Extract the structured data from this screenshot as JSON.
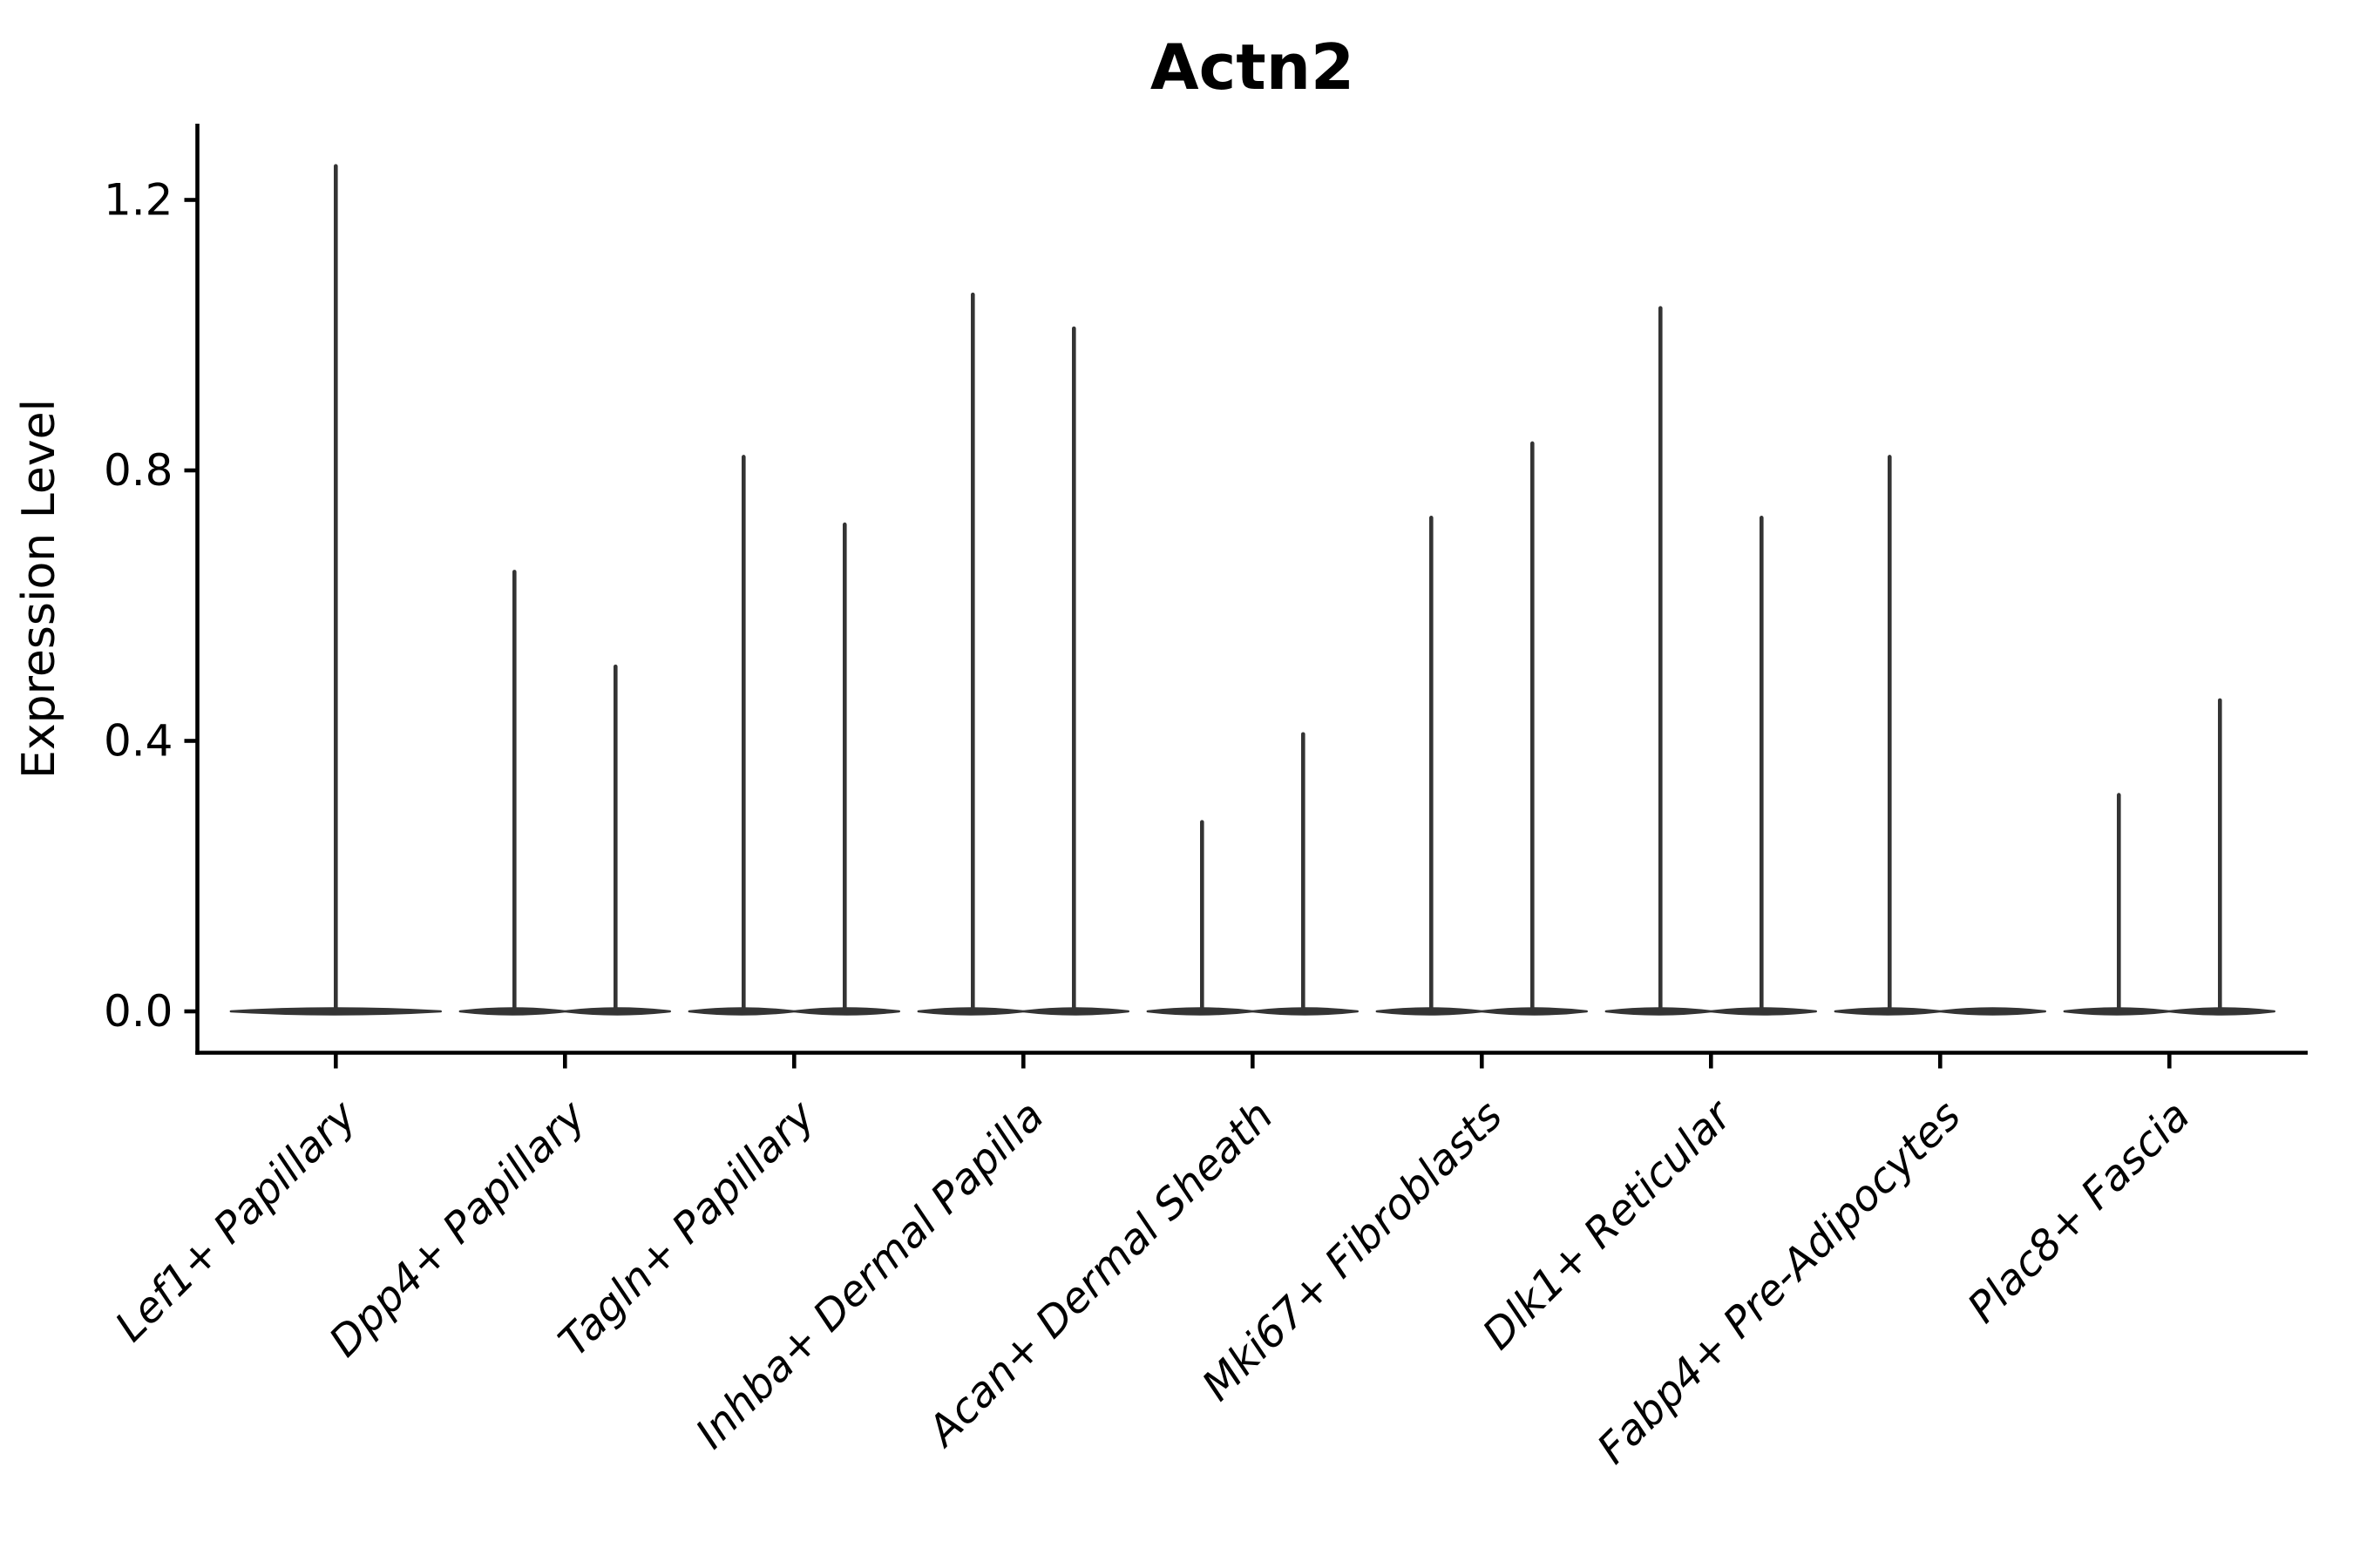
{
  "chart_data": {
    "type": "violin",
    "title": "Actn2",
    "ylabel": "Expression Level",
    "xlabel": "",
    "ylim": [
      0,
      1.32
    ],
    "yticks": [
      0.0,
      0.4,
      0.8,
      1.2
    ],
    "ytick_labels": [
      "0.0",
      "0.4",
      "0.8",
      "1.2"
    ],
    "grid": false,
    "legend": null,
    "categories": [
      "Lef1+ Papillary",
      "Dpp4+ Papillary",
      "Tagln+ Papillary",
      "Inhba+ Dermal Papilla",
      "Acan+ Dermal Sheath",
      "Mki67+ Fibroblasts",
      "Dlk1+ Reticular",
      "Fabp4+ Pre-Adipocytes",
      "Plac8+ Fascia"
    ],
    "series": [
      {
        "category": "Lef1+ Papillary",
        "violins": [
          {
            "side": "full",
            "peak": 1.25
          }
        ]
      },
      {
        "category": "Dpp4+ Papillary",
        "violins": [
          {
            "side": "left",
            "peak": 0.65
          },
          {
            "side": "right",
            "peak": 0.51
          }
        ]
      },
      {
        "category": "Tagln+ Papillary",
        "violins": [
          {
            "side": "left",
            "peak": 0.82
          },
          {
            "side": "right",
            "peak": 0.72
          }
        ]
      },
      {
        "category": "Inhba+ Dermal Papilla",
        "violins": [
          {
            "side": "left",
            "peak": 1.06
          },
          {
            "side": "right",
            "peak": 1.01
          }
        ]
      },
      {
        "category": "Acan+ Dermal Sheath",
        "violins": [
          {
            "side": "left",
            "peak": 0.28
          },
          {
            "side": "right",
            "peak": 0.41
          }
        ]
      },
      {
        "category": "Mki67+ Fibroblasts",
        "violins": [
          {
            "side": "left",
            "peak": 0.73
          },
          {
            "side": "right",
            "peak": 0.84
          }
        ]
      },
      {
        "category": "Dlk1+ Reticular",
        "violins": [
          {
            "side": "left",
            "peak": 1.04
          },
          {
            "side": "right",
            "peak": 0.73
          }
        ]
      },
      {
        "category": "Fabp4+ Pre-Adipocytes",
        "violins": [
          {
            "side": "left",
            "peak": 0.82
          },
          {
            "side": "right",
            "peak": 0.0
          }
        ]
      },
      {
        "category": "Plac8+ Fascia",
        "violins": [
          {
            "side": "left",
            "peak": 0.32
          },
          {
            "side": "right",
            "peak": 0.46
          }
        ]
      }
    ],
    "baseline_value": 0.0,
    "colors": {
      "violin": "#343434",
      "axis": "#000000",
      "text": "#000000",
      "background": "#ffffff"
    }
  }
}
